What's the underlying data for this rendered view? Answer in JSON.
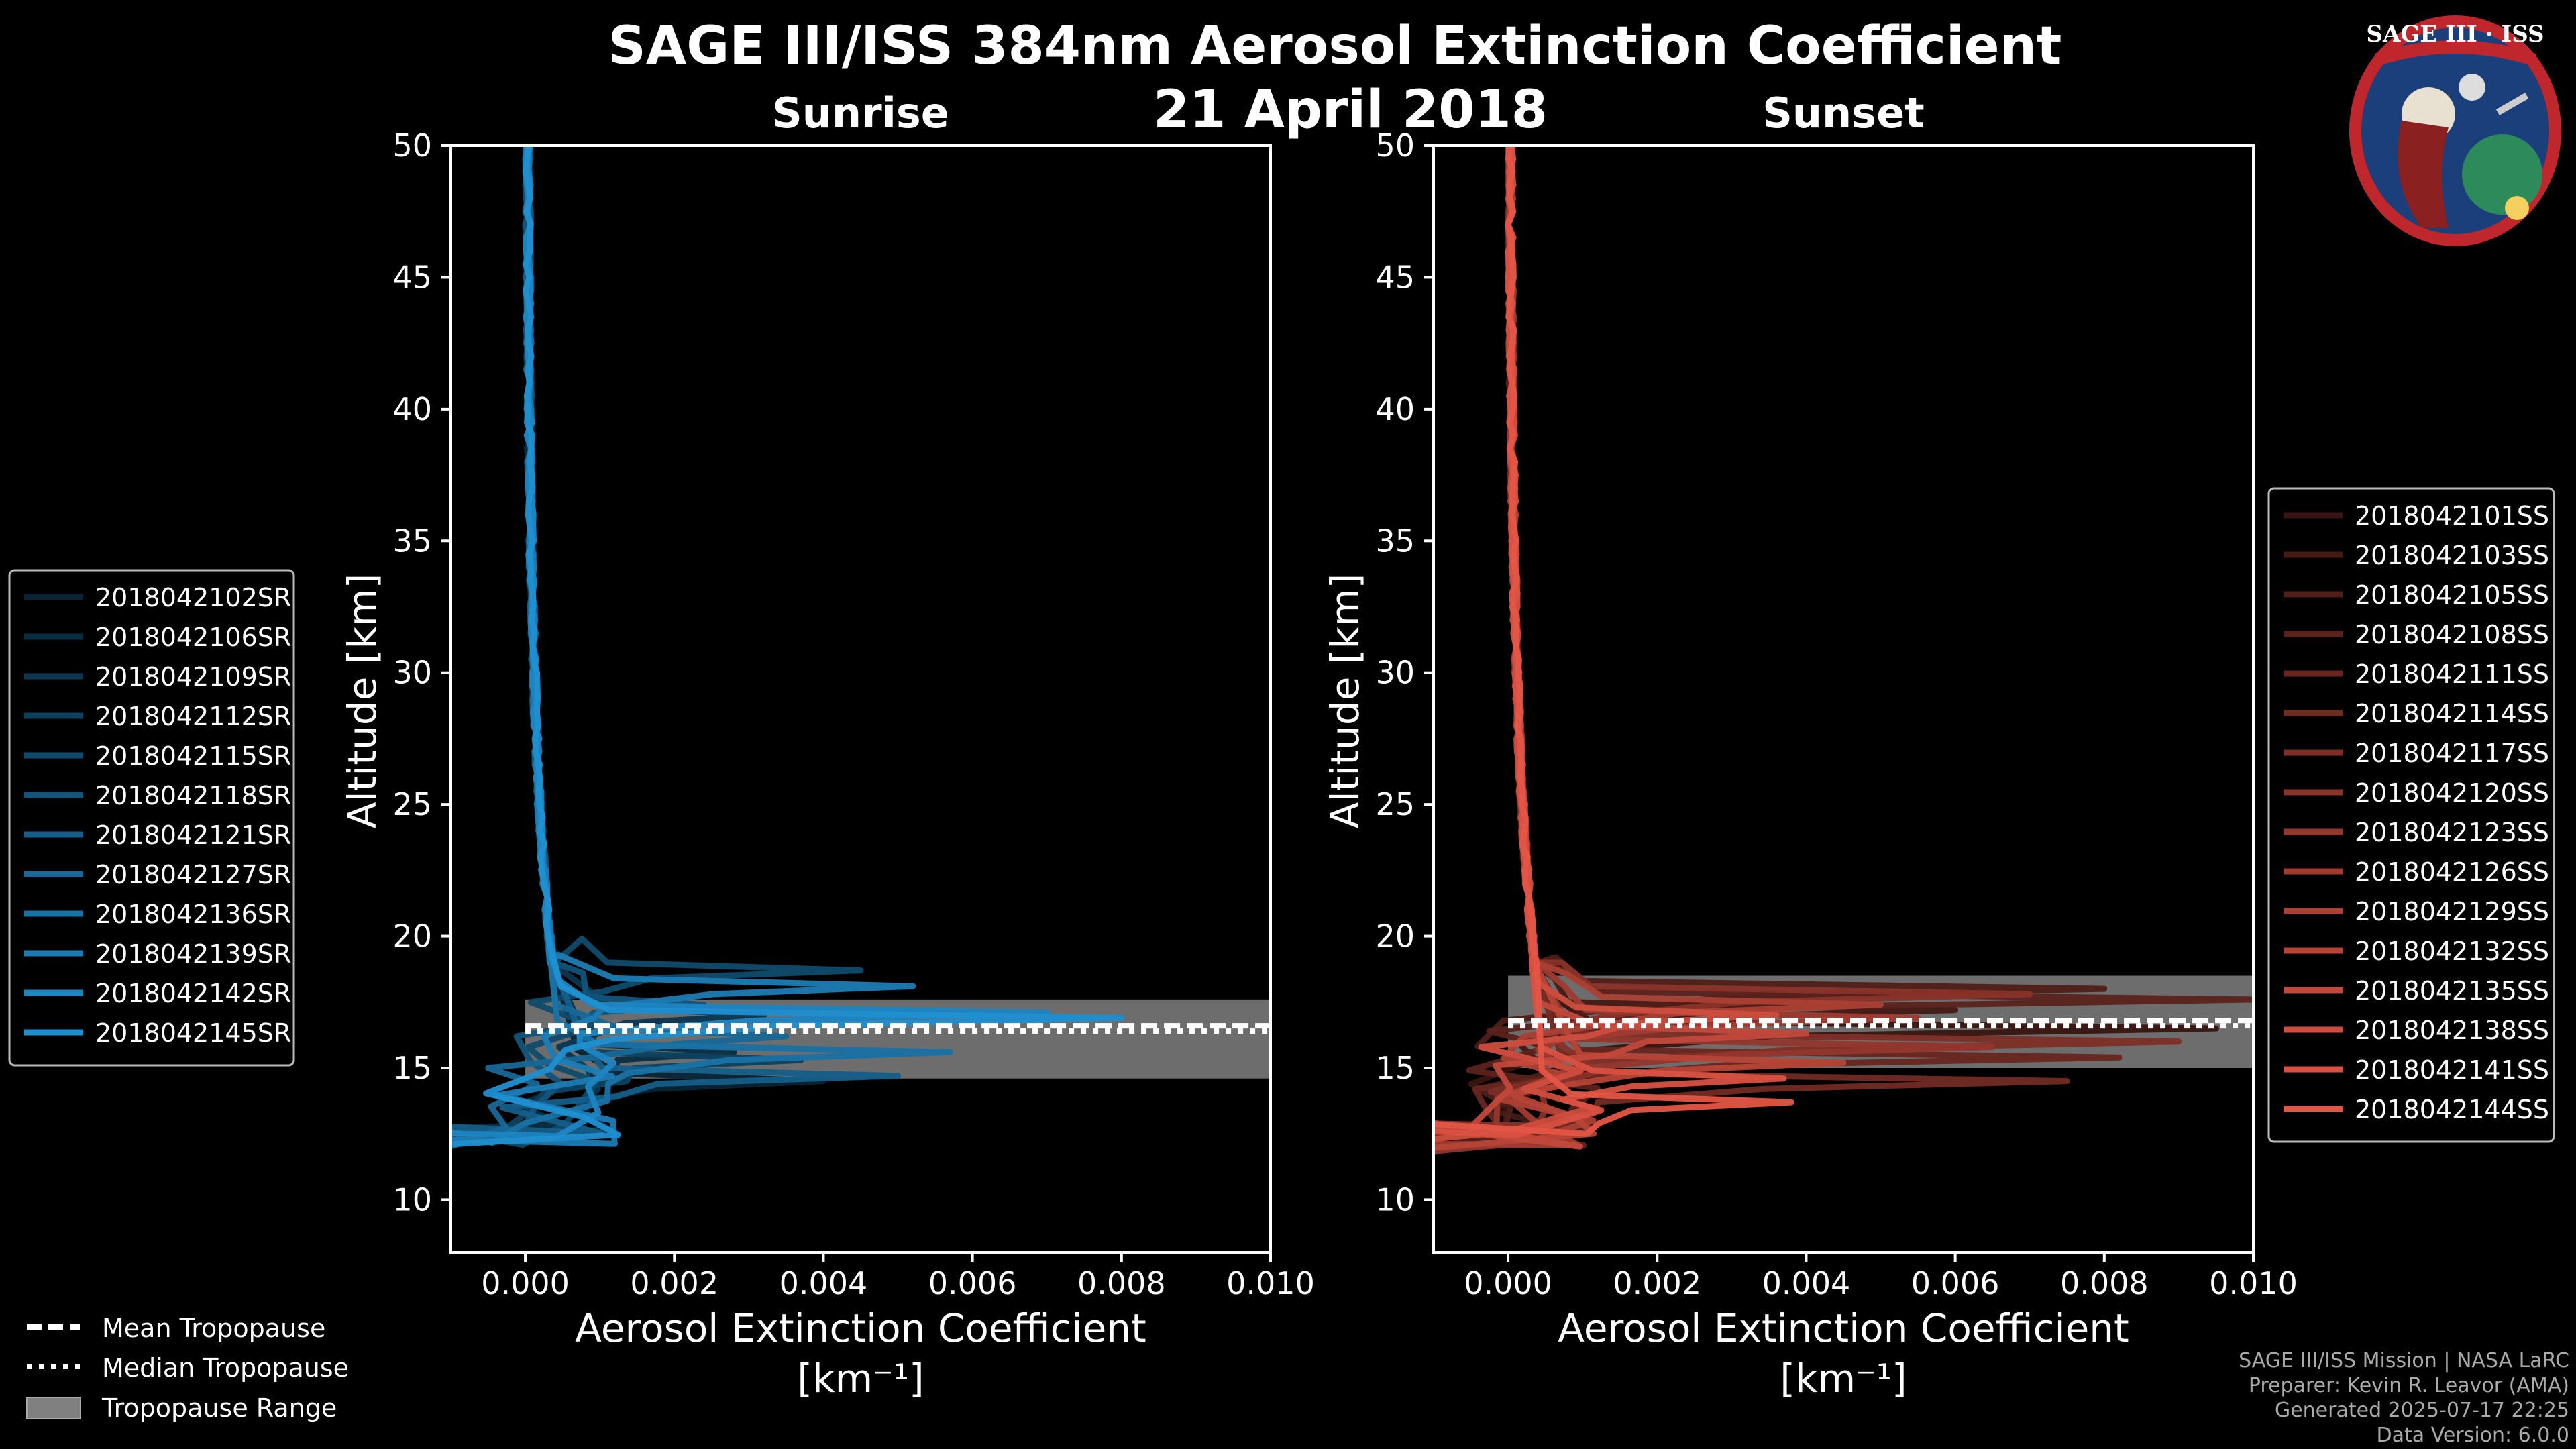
{
  "title": "SAGE III/ISS 384nm Aerosol Extinction Coefficient",
  "date": "21 April 2018",
  "panels": {
    "left": {
      "title": "Sunrise"
    },
    "right": {
      "title": "Sunset"
    }
  },
  "xlabel_line1": "Aerosol Extinction Coefficient",
  "xlabel_line2": "[km⁻¹]",
  "ylabel": "Altitude [km]",
  "xticks": [
    "0.000",
    "0.002",
    "0.004",
    "0.006",
    "0.008",
    "0.010"
  ],
  "yticks": [
    "10",
    "15",
    "20",
    "25",
    "30",
    "35",
    "40",
    "45",
    "50"
  ],
  "legend_bottom": [
    {
      "label": "Mean Tropopause",
      "icon": "dashed-line"
    },
    {
      "label": "Median Tropopause",
      "icon": "dotted-line"
    },
    {
      "label": "Tropopause Range",
      "icon": "gray-patch"
    }
  ],
  "footer": [
    "SAGE III/ISS Mission | NASA LaRC",
    "Preparer: Kevin R. Leavor (AMA)",
    "Generated 2025-07-17 22:25",
    "Data Version: 6.0.0"
  ],
  "logo": {
    "title": "SAGE III · ISS"
  },
  "colors": {
    "sunrise": "#1f8fd0",
    "sunset": "#e45545",
    "range": "#808080"
  },
  "chart_data": [
    {
      "type": "line",
      "title": "Sunrise",
      "xlabel": "Aerosol Extinction Coefficient [km⁻¹]",
      "ylabel": "Altitude [km]",
      "xlim": [
        -0.001,
        0.01
      ],
      "ylim": [
        8,
        50
      ],
      "tropopause": {
        "mean": 16.6,
        "median": 16.4,
        "range": [
          14.6,
          17.6
        ]
      },
      "series": [
        {
          "name": "2018042102SR",
          "peak": [
            0.004,
            14.5
          ]
        },
        {
          "name": "2018042106SR",
          "peak": [
            0.0028,
            15.6
          ]
        },
        {
          "name": "2018042109SR",
          "peak": [
            0.0032,
            17.0
          ]
        },
        {
          "name": "2018042112SR",
          "peak": [
            0.0037,
            15.3
          ]
        },
        {
          "name": "2018042115SR",
          "peak": [
            0.0045,
            18.7
          ]
        },
        {
          "name": "2018042118SR",
          "peak": [
            0.0024,
            17.4
          ]
        },
        {
          "name": "2018042121SR",
          "peak": [
            0.005,
            14.7
          ]
        },
        {
          "name": "2018042127SR",
          "peak": [
            0.0035,
            16.2
          ]
        },
        {
          "name": "2018042136SR",
          "peak": [
            0.0057,
            15.6
          ]
        },
        {
          "name": "2018042139SR",
          "peak": [
            0.0052,
            18.1
          ]
        },
        {
          "name": "2018042142SR",
          "peak": [
            0.007,
            17.1
          ]
        },
        {
          "name": "2018042145SR",
          "peak": [
            0.008,
            16.9
          ]
        }
      ]
    },
    {
      "type": "line",
      "title": "Sunset",
      "xlabel": "Aerosol Extinction Coefficient [km⁻¹]",
      "ylabel": "Altitude [km]",
      "xlim": [
        -0.001,
        0.01
      ],
      "ylim": [
        8,
        50
      ],
      "tropopause": {
        "mean": 16.8,
        "median": 16.6,
        "range": [
          15.0,
          18.5
        ]
      },
      "series": [
        {
          "name": "2018042101SS",
          "peak": [
            0.0095,
            16.5
          ]
        },
        {
          "name": "2018042103SS",
          "peak": [
            0.006,
            17.2
          ]
        },
        {
          "name": "2018042105SS",
          "peak": [
            0.008,
            18.0
          ]
        },
        {
          "name": "2018042108SS",
          "peak": [
            0.01,
            17.6
          ]
        },
        {
          "name": "2018042111SS",
          "peak": [
            0.0082,
            15.4
          ]
        },
        {
          "name": "2018042114SS",
          "peak": [
            0.0075,
            14.5
          ]
        },
        {
          "name": "2018042117SS",
          "peak": [
            0.009,
            16.0
          ]
        },
        {
          "name": "2018042120SS",
          "peak": [
            0.007,
            17.8
          ]
        },
        {
          "name": "2018042123SS",
          "peak": [
            0.0065,
            15.8
          ]
        },
        {
          "name": "2018042126SS",
          "peak": [
            0.0055,
            16.9
          ]
        },
        {
          "name": "2018042129SS",
          "peak": [
            0.005,
            17.4
          ]
        },
        {
          "name": "2018042132SS",
          "peak": [
            0.0045,
            15.2
          ]
        },
        {
          "name": "2018042135SS",
          "peak": [
            0.004,
            16.3
          ]
        },
        {
          "name": "2018042138SS",
          "peak": [
            0.0036,
            17.0
          ]
        },
        {
          "name": "2018042141SS",
          "peak": [
            0.0037,
            14.6
          ]
        },
        {
          "name": "2018042144SS",
          "peak": [
            0.0038,
            13.7
          ]
        }
      ]
    }
  ]
}
